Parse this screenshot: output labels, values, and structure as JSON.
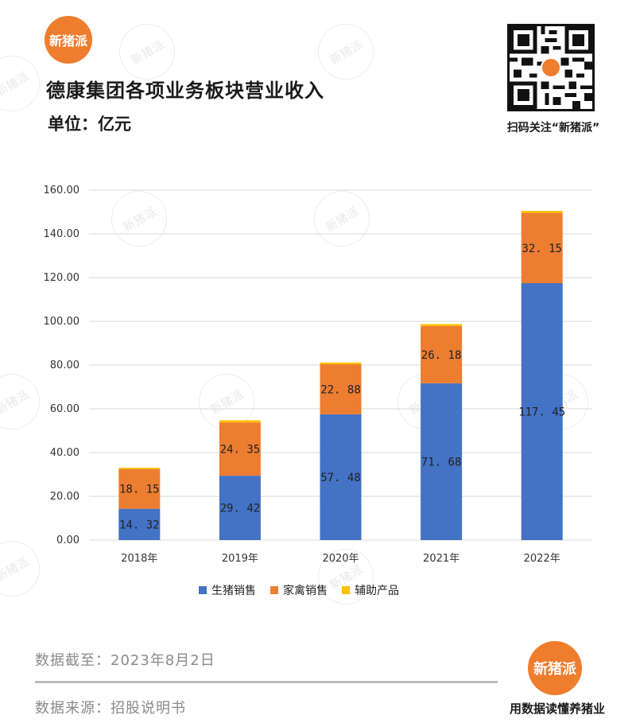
{
  "brand": {
    "name": "新猪派",
    "color": "#ef7d2e"
  },
  "header": {
    "title": "德康集团各项业务板块营业收入",
    "unit": "单位：亿元"
  },
  "qr": {
    "caption": "扫码关注“新猪派”"
  },
  "chart_data": {
    "type": "bar",
    "stacked": true,
    "categories": [
      "2018年",
      "2019年",
      "2020年",
      "2021年",
      "2022年"
    ],
    "series": [
      {
        "name": "生猪销售",
        "color": "#4472c4",
        "values": [
          14.32,
          29.42,
          57.48,
          71.68,
          117.45
        ]
      },
      {
        "name": "家禽销售",
        "color": "#ed7d31",
        "values": [
          18.15,
          24.35,
          22.88,
          26.18,
          32.15
        ]
      },
      {
        "name": "辅助产品",
        "color": "#ffc000",
        "values": [
          0.6,
          1.0,
          0.8,
          0.9,
          0.9
        ]
      }
    ],
    "ylim": [
      0,
      160
    ],
    "yticks": [
      "0.00",
      "20.00",
      "40.00",
      "60.00",
      "80.00",
      "100.00",
      "120.00",
      "140.00",
      "160.00"
    ],
    "data_labels": [
      [
        "14. 32",
        "29. 42",
        "57. 48",
        "71. 68",
        "117. 45"
      ],
      [
        "18. 15",
        "24. 35",
        "22. 88",
        "26. 18",
        "32. 15"
      ]
    ],
    "grid": true,
    "legend_position": "bottom"
  },
  "footer": {
    "date": "数据截至：2023年8月2日",
    "source": "数据来源：招股说明书",
    "slogan": "用数据读懂养猪业"
  }
}
